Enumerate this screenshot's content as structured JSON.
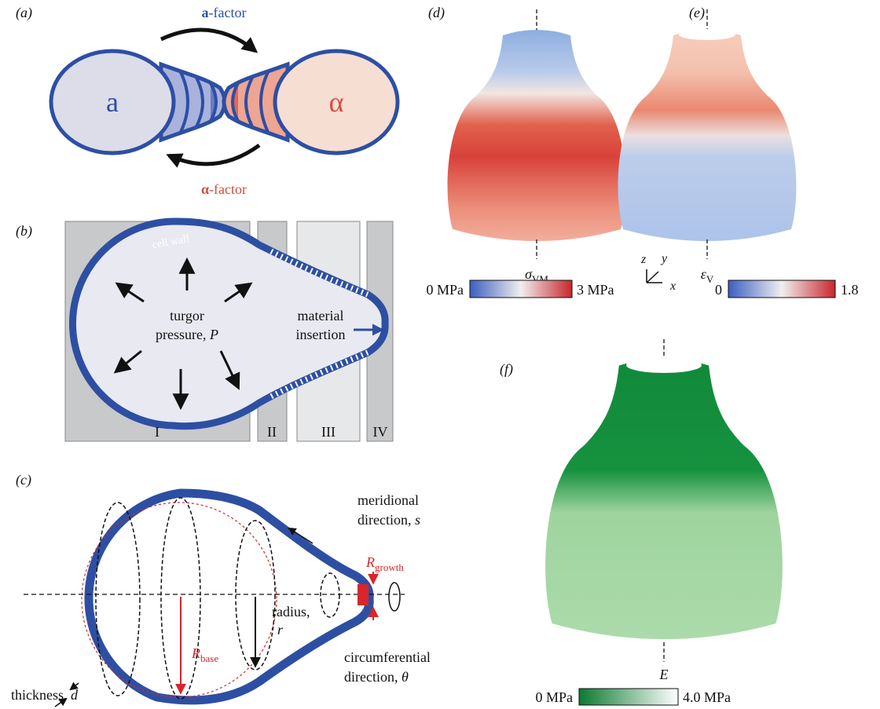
{
  "panel_a": {
    "label": "(a)",
    "cell_a": "a",
    "cell_alpha": "α",
    "a_factor": {
      "bold": "a",
      "rest": "-factor"
    },
    "alpha_factor": {
      "bold": "α",
      "rest": "-factor"
    }
  },
  "panel_b": {
    "label": "(b)",
    "cell_wall": "cell wall",
    "turgor": {
      "line1": "turgor",
      "line2": "pressure, ",
      "symbol": "P"
    },
    "insertion": {
      "line1": "material",
      "line2": "insertion"
    },
    "regions": [
      "I",
      "II",
      "III",
      "IV"
    ]
  },
  "panel_c": {
    "label": "(c)",
    "meridional": {
      "line1": "meridional",
      "line2": "direction, ",
      "symbol": "s"
    },
    "r_growth": {
      "symbol": "R",
      "subscript": "growth"
    },
    "radius": {
      "line1": "radius,",
      "symbol": "r"
    },
    "r_base": {
      "symbol": "R",
      "subscript": "base"
    },
    "circumferential": {
      "line1": "circumferential",
      "line2": "direction, ",
      "symbol": "θ"
    },
    "thickness": {
      "text": "thickness, ",
      "symbol": "d"
    }
  },
  "panel_d": {
    "label": "(d)",
    "quantity": {
      "symbol": "σ",
      "subscript": "VM"
    },
    "colorbar": {
      "min": "0 MPa",
      "max": "3 MPa"
    }
  },
  "panel_e": {
    "label": "(e)",
    "quantity": {
      "symbol": "ε",
      "subscript": "V"
    },
    "colorbar": {
      "min": "0",
      "max": "1.8"
    }
  },
  "axes": {
    "z": "z",
    "y": "y",
    "x": "x"
  },
  "panel_f": {
    "label": "(f)",
    "quantity": {
      "symbol": "E"
    },
    "colorbar": {
      "min": "0 MPa",
      "max": "4.0 MPa"
    }
  }
}
